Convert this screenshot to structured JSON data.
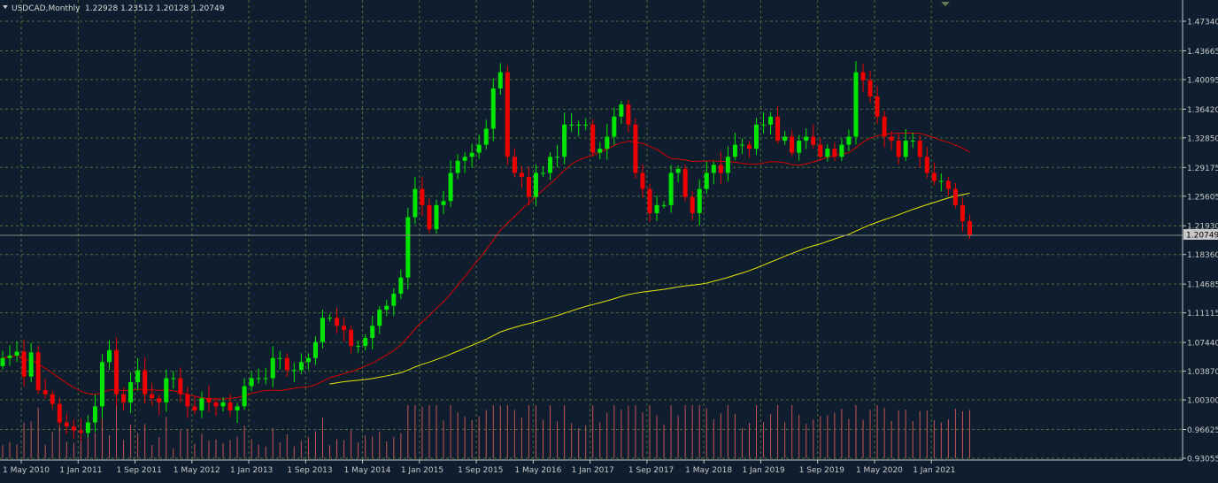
{
  "header": {
    "symbol_label": "USDCAD,Monthly",
    "ohlc_label": "1.22928 1.23512 1.20128 1.20749"
  },
  "price_tag": {
    "value_label": "1.20749"
  },
  "colors": {
    "background": "#0f1e2e",
    "grid": "#4e6a3a",
    "bull": "#00e600",
    "bear": "#ee0000",
    "ma_fast": "#d40000",
    "ma_slow": "#e6e600",
    "volume": "#c25555",
    "text": "#c8c8c8"
  },
  "chart_data": {
    "type": "candlestick",
    "symbol": "USDCAD",
    "timeframe": "Monthly",
    "y_ticks": [
      "1.47340",
      "1.43665",
      "1.40095",
      "1.36420",
      "1.32850",
      "1.29175",
      "1.25605",
      "1.21930",
      "1.18360",
      "1.14685",
      "1.11115",
      "1.07440",
      "1.03870",
      "1.00300",
      "0.96625",
      "0.93055"
    ],
    "ylim": [
      0.93055,
      1.4734
    ],
    "x_ticks": [
      {
        "label": "1 May 2010",
        "index": 0
      },
      {
        "label": "1 Jan 2011",
        "index": 8
      },
      {
        "label": "1 Sep 2011",
        "index": 16
      },
      {
        "label": "1 May 2012",
        "index": 24
      },
      {
        "label": "1 Jan 2013",
        "index": 32
      },
      {
        "label": "1 Sep 2013",
        "index": 40
      },
      {
        "label": "1 May 2014",
        "index": 48
      },
      {
        "label": "1 Jan 2015",
        "index": 56
      },
      {
        "label": "1 Sep 2015",
        "index": 64
      },
      {
        "label": "1 May 2016",
        "index": 72
      },
      {
        "label": "1 Jan 2017",
        "index": 80
      },
      {
        "label": "1 Sep 2017",
        "index": 88
      },
      {
        "label": "1 May 2018",
        "index": 96
      },
      {
        "label": "1 Jan 2019",
        "index": 104
      },
      {
        "label": "1 Sep 2019",
        "index": 112
      },
      {
        "label": "1 May 2020",
        "index": 120
      },
      {
        "label": "1 Jan 2021",
        "index": 128
      }
    ],
    "closes": [
      1.055,
      1.058,
      1.063,
      1.032,
      1.062,
      1.015,
      1.01,
      0.998,
      0.975,
      0.97,
      0.965,
      0.962,
      0.975,
      0.995,
      1.05,
      1.065,
      1.01,
      1.0,
      1.025,
      1.04,
      1.01,
      1.005,
      1.0,
      1.03,
      1.03,
      1.01,
      0.995,
      0.99,
      1.005,
      1.0,
      0.995,
      1.0,
      0.99,
      0.995,
      1.02,
      1.03,
      1.03,
      1.03,
      1.055,
      1.055,
      1.04,
      1.04,
      1.05,
      1.055,
      1.075,
      1.105,
      1.105,
      1.095,
      1.09,
      1.07,
      1.07,
      1.08,
      1.095,
      1.115,
      1.12,
      1.135,
      1.155,
      1.23,
      1.265,
      1.245,
      1.215,
      1.245,
      1.25,
      1.285,
      1.3,
      1.305,
      1.31,
      1.32,
      1.34,
      1.39,
      1.41,
      1.305,
      1.285,
      1.28,
      1.255,
      1.285,
      1.285,
      1.305,
      1.305,
      1.345,
      1.345,
      1.345,
      1.345,
      1.31,
      1.315,
      1.33,
      1.355,
      1.37,
      1.345,
      1.285,
      1.265,
      1.235,
      1.245,
      1.245,
      1.285,
      1.29,
      1.255,
      1.235,
      1.265,
      1.285,
      1.295,
      1.285,
      1.305,
      1.32,
      1.32,
      1.315,
      1.345,
      1.345,
      1.355,
      1.325,
      1.33,
      1.31,
      1.325,
      1.33,
      1.32,
      1.305,
      1.315,
      1.305,
      1.32,
      1.33,
      1.41,
      1.4,
      1.38,
      1.355,
      1.33,
      1.325,
      1.305,
      1.325,
      1.325,
      1.305,
      1.285,
      1.275,
      1.275,
      1.265,
      1.245,
      1.225,
      1.2075
    ],
    "series": [
      {
        "name": "",
        "type": "line",
        "color": "#d40000"
      },
      {
        "name": "",
        "type": "line",
        "color": "#e6e600"
      }
    ]
  }
}
